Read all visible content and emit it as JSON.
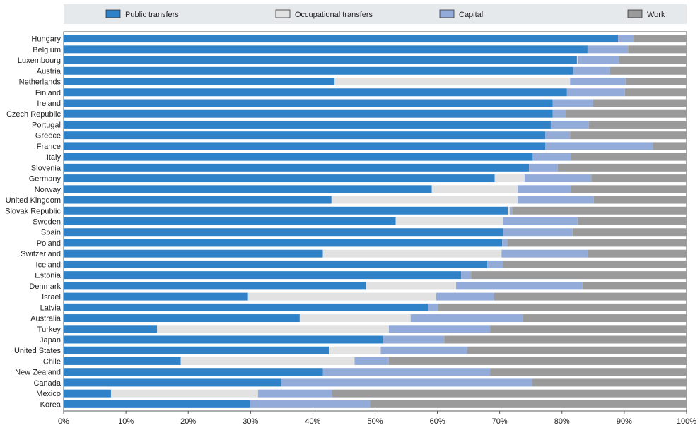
{
  "chart_data": {
    "type": "bar",
    "orientation": "horizontal",
    "stacked": true,
    "title": "",
    "xlabel": "",
    "ylabel": "",
    "xlim": [
      0,
      100
    ],
    "x_ticks": [
      "0%",
      "10%",
      "20%",
      "30%",
      "40%",
      "50%",
      "60%",
      "70%",
      "80%",
      "90%",
      "100%"
    ],
    "legend_position": "top",
    "categories": [
      "Hungary",
      "Belgium",
      "Luxembourg",
      "Austria",
      "Netherlands",
      "Finland",
      "Ireland",
      "Czech Republic",
      "Portugal",
      "Greece",
      "France",
      "Italy",
      "Slovenia",
      "Germany",
      "Norway",
      "United Kingdom",
      "Slovak Republic",
      "Sweden",
      "Spain",
      "Poland",
      "Switzerland",
      "Iceland",
      "Estonia",
      "Denmark",
      "Israel",
      "Latvia",
      "Australia",
      "Turkey",
      "Japan",
      "United States",
      "Chile",
      "New Zealand",
      "Canada",
      "Mexico",
      "Korea"
    ],
    "series": [
      {
        "name": "Public transfers",
        "color": "#2f82c8",
        "values": [
          89.0,
          84.1,
          82.4,
          81.8,
          43.5,
          80.8,
          78.5,
          78.5,
          78.2,
          77.3,
          77.3,
          75.3,
          74.7,
          69.2,
          59.1,
          43.0,
          71.3,
          53.3,
          70.6,
          70.4,
          41.6,
          68.0,
          63.8,
          48.5,
          29.6,
          58.5,
          37.9,
          15.0,
          51.2,
          42.6,
          18.8,
          41.6,
          35.0,
          7.6,
          29.9
        ]
      },
      {
        "name": "Occupational transfers",
        "color": "#e2e2e2",
        "values": [
          0.0,
          0.0,
          0.1,
          0.0,
          37.8,
          0.0,
          0.0,
          0.0,
          0.0,
          0.0,
          0.0,
          0.0,
          0.0,
          4.8,
          13.8,
          29.9,
          0.3,
          17.3,
          0.0,
          0.0,
          28.7,
          0.0,
          0.0,
          14.5,
          30.2,
          0.0,
          17.8,
          37.2,
          0.0,
          8.3,
          27.9,
          0.0,
          0.0,
          23.6,
          0.0
        ]
      },
      {
        "name": "Capital",
        "color": "#93abd9",
        "values": [
          2.5,
          6.5,
          6.7,
          5.9,
          8.9,
          9.3,
          6.5,
          2.0,
          6.1,
          4.0,
          17.3,
          6.2,
          4.6,
          10.7,
          8.6,
          12.2,
          0.4,
          11.9,
          11.1,
          0.8,
          13.9,
          2.5,
          1.6,
          20.3,
          9.3,
          1.6,
          18.0,
          16.3,
          9.9,
          13.9,
          5.5,
          26.9,
          40.2,
          11.9,
          19.3
        ]
      },
      {
        "name": "Work",
        "color": "#9a9a9a",
        "values": [
          8.5,
          9.4,
          10.8,
          12.3,
          9.8,
          9.9,
          15.0,
          19.5,
          15.7,
          18.7,
          5.4,
          18.5,
          20.7,
          15.3,
          18.5,
          14.9,
          28.0,
          17.5,
          18.3,
          28.8,
          15.8,
          29.5,
          34.6,
          16.7,
          30.9,
          39.9,
          26.3,
          31.5,
          38.9,
          35.2,
          47.8,
          31.5,
          24.8,
          56.9,
          50.8
        ]
      }
    ]
  }
}
